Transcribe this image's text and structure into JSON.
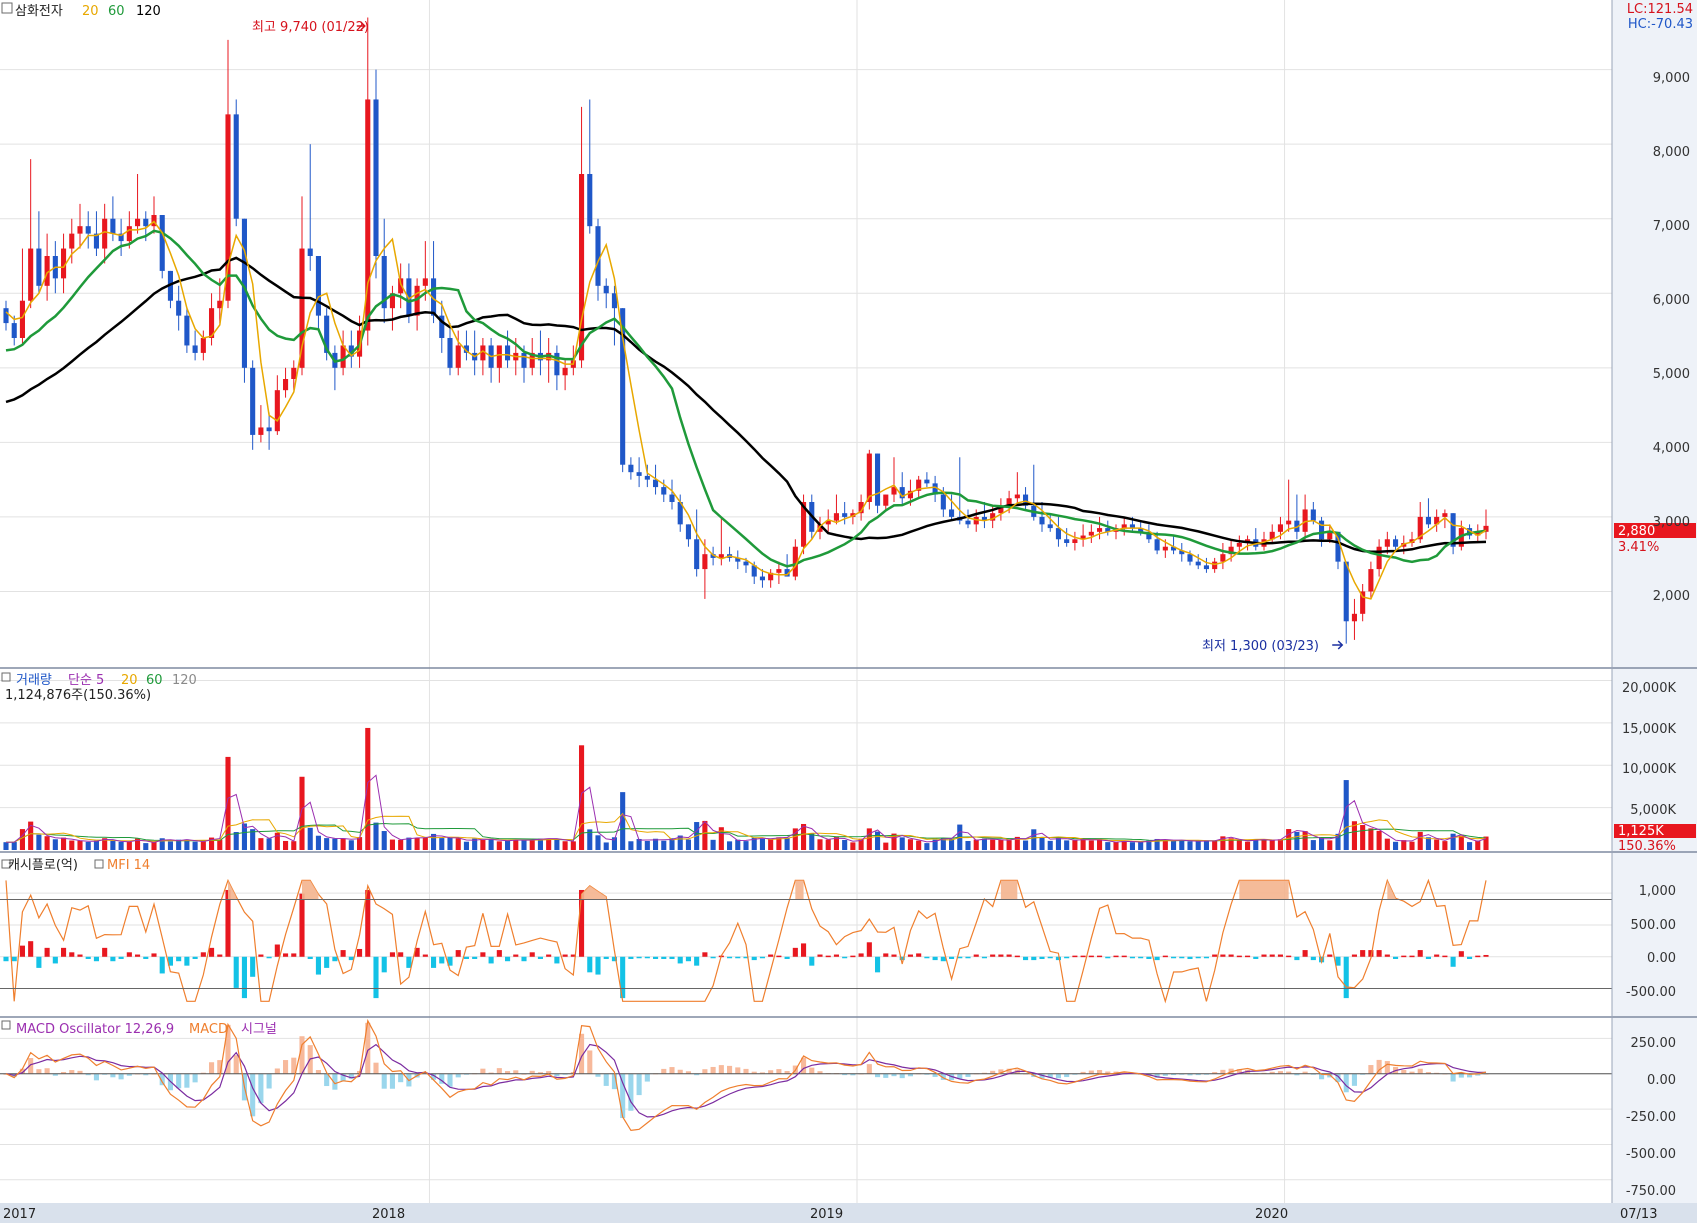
{
  "colors": {
    "up": "#e8171f",
    "down": "#1f57c8",
    "ma20": "#e8a800",
    "ma60": "#1f9a3a",
    "ma120": "#000000",
    "mfi": "#ef7f2e",
    "mfi_fill": "#f4b48e",
    "cash_neg": "#13c2e6",
    "macd_line": "#ef7f2e",
    "signal_line": "#7b2ca0",
    "osc_pos": "#f7b99b",
    "osc_neg": "#9ad6ec",
    "grid": "#e2e2e2",
    "axis_bg": "#d9e1ec",
    "header_blue": "#1a2fa0",
    "header_red": "#d6121c"
  },
  "price_panel": {
    "stock_name": "삼화전자",
    "ma_labels": [
      "20",
      "60",
      "120"
    ],
    "lc": "LC:121.54",
    "hc": "HC:-70.43",
    "high_annotation": "최고 9,740 (01/22)",
    "low_annotation": "최저 1,300 (03/23)",
    "current_price": "2,880",
    "change_pct": "3.41%",
    "y_ticks": [
      "9,000",
      "8,000",
      "7,000",
      "6,000",
      "5,000",
      "4,000",
      "3,000",
      "2,000"
    ]
  },
  "volume_panel": {
    "title": "거래량",
    "simple_label": "단순 5",
    "ma_labels": [
      "20",
      "60",
      "120"
    ],
    "value_text": "1,124,876주(150.36%)",
    "current": "1,125K",
    "current_pct": "150.36%",
    "y_ticks": [
      "20,000K",
      "15,000K",
      "10,000K",
      "5,000K"
    ]
  },
  "cash_panel": {
    "title": "캐시플로(억)",
    "mfi_label": "MFI 14",
    "y_ticks": [
      "1,000",
      "500.00",
      "0.00",
      "-500.00"
    ]
  },
  "macd_panel": {
    "osc_label": "MACD Oscillator 12,26,9",
    "macd_label": "MACD",
    "signal_label": "시그널",
    "y_ticks": [
      "250.00",
      "0.00",
      "-250.00",
      "-500.00",
      "-750.00"
    ]
  },
  "x_axis": {
    "labels": [
      "2017",
      "2018",
      "2019",
      "2020"
    ],
    "last_label": "07/13"
  },
  "chart_data": {
    "type": "candlestick",
    "title": "삼화전자",
    "x_range": [
      "2017-01",
      "2020-07-13"
    ],
    "price_ylim": [
      1000,
      9800
    ],
    "candles_ohlc_weekly": [
      [
        5800,
        5900,
        5500,
        5600
      ],
      [
        5600,
        5700,
        5300,
        5400
      ],
      [
        5400,
        6600,
        5300,
        5900
      ],
      [
        5900,
        7800,
        5800,
        6600
      ],
      [
        6600,
        7100,
        6000,
        6100
      ],
      [
        6100,
        6800,
        5900,
        6500
      ],
      [
        6500,
        6700,
        6000,
        6200
      ],
      [
        6200,
        6800,
        6000,
        6600
      ],
      [
        6600,
        7000,
        6400,
        6800
      ],
      [
        6800,
        7200,
        6600,
        6900
      ],
      [
        6900,
        7100,
        6600,
        6800
      ],
      [
        6800,
        7100,
        6500,
        6600
      ],
      [
        6600,
        7200,
        6400,
        7000
      ],
      [
        7000,
        7300,
        6700,
        6800
      ],
      [
        6800,
        7000,
        6500,
        6700
      ],
      [
        6700,
        7100,
        6600,
        6900
      ],
      [
        6900,
        7600,
        6800,
        7000
      ],
      [
        7000,
        7100,
        6700,
        6900
      ],
      [
        6900,
        7300,
        6800,
        7050
      ],
      [
        7050,
        7050,
        6200,
        6300
      ],
      [
        6300,
        6300,
        5800,
        5900
      ],
      [
        5900,
        6100,
        5500,
        5700
      ],
      [
        5700,
        5800,
        5200,
        5300
      ],
      [
        5300,
        5500,
        5100,
        5200
      ],
      [
        5200,
        5500,
        5100,
        5400
      ],
      [
        5400,
        6000,
        5300,
        5800
      ],
      [
        5800,
        6200,
        5600,
        5900
      ],
      [
        5900,
        9400,
        5800,
        8400
      ],
      [
        8400,
        8600,
        6900,
        7000
      ],
      [
        7000,
        7000,
        4800,
        5000
      ],
      [
        5000,
        5100,
        3900,
        4100
      ],
      [
        4100,
        4500,
        4000,
        4200
      ],
      [
        4200,
        4400,
        3900,
        4150
      ],
      [
        4150,
        4900,
        4100,
        4700
      ],
      [
        4700,
        5000,
        4600,
        4850
      ],
      [
        4850,
        5100,
        4700,
        5000
      ],
      [
        5000,
        7300,
        4900,
        6600
      ],
      [
        6600,
        8000,
        6300,
        6500
      ],
      [
        6500,
        6500,
        5500,
        5700
      ],
      [
        5700,
        5800,
        5100,
        5200
      ],
      [
        5200,
        5300,
        4700,
        5000
      ],
      [
        5000,
        5500,
        4900,
        5300
      ],
      [
        5300,
        5500,
        5000,
        5150
      ],
      [
        5150,
        5700,
        5000,
        5500
      ],
      [
        5500,
        9700,
        5300,
        8600
      ],
      [
        8600,
        9000,
        6200,
        6500
      ],
      [
        6500,
        7000,
        5600,
        5800
      ],
      [
        5800,
        6100,
        5500,
        6000
      ],
      [
        6000,
        6400,
        5800,
        6200
      ],
      [
        6200,
        6400,
        5600,
        5700
      ],
      [
        5700,
        6200,
        5500,
        6100
      ],
      [
        6100,
        6700,
        5900,
        6200
      ],
      [
        6200,
        6700,
        5600,
        5700
      ],
      [
        5700,
        5900,
        5200,
        5400
      ],
      [
        5400,
        5600,
        4900,
        5000
      ],
      [
        5000,
        5500,
        4900,
        5300
      ],
      [
        5300,
        5500,
        5100,
        5200
      ],
      [
        5200,
        5500,
        4900,
        5100
      ],
      [
        5100,
        5400,
        4900,
        5300
      ],
      [
        5300,
        5400,
        4800,
        5000
      ],
      [
        5000,
        5200,
        4800,
        5300
      ],
      [
        5300,
        5500,
        5000,
        5100
      ],
      [
        5100,
        5400,
        4900,
        5200
      ],
      [
        5200,
        5300,
        4800,
        5000
      ],
      [
        5000,
        5400,
        4900,
        5200
      ],
      [
        5200,
        5500,
        4900,
        5100
      ],
      [
        5100,
        5400,
        4800,
        5200
      ],
      [
        5200,
        5300,
        4700,
        4900
      ],
      [
        4900,
        5100,
        4700,
        5000
      ],
      [
        5000,
        5300,
        4900,
        5100
      ],
      [
        5100,
        8500,
        5000,
        7600
      ],
      [
        7600,
        8600,
        6800,
        6900
      ],
      [
        6900,
        7000,
        5900,
        6100
      ],
      [
        6100,
        6200,
        5800,
        6000
      ],
      [
        6000,
        6100,
        5300,
        5800
      ],
      [
        5800,
        5800,
        3600,
        3700
      ],
      [
        3700,
        3800,
        3500,
        3600
      ],
      [
        3600,
        3800,
        3400,
        3550
      ],
      [
        3550,
        3700,
        3400,
        3500
      ],
      [
        3500,
        3700,
        3300,
        3400
      ],
      [
        3400,
        3500,
        3200,
        3300
      ],
      [
        3300,
        3500,
        3100,
        3200
      ],
      [
        3200,
        3300,
        2800,
        2900
      ],
      [
        2900,
        2900,
        2600,
        2700
      ],
      [
        2700,
        3100,
        2200,
        2300
      ],
      [
        2300,
        2700,
        1900,
        2500
      ],
      [
        2500,
        2600,
        2350,
        2450
      ],
      [
        2450,
        3000,
        2350,
        2500
      ],
      [
        2500,
        2600,
        2400,
        2450
      ],
      [
        2450,
        2550,
        2300,
        2400
      ],
      [
        2400,
        2450,
        2250,
        2350
      ],
      [
        2350,
        2400,
        2100,
        2200
      ],
      [
        2200,
        2300,
        2050,
        2150
      ],
      [
        2150,
        2300,
        2050,
        2250
      ],
      [
        2250,
        2400,
        2100,
        2300
      ],
      [
        2300,
        2500,
        2200,
        2200
      ],
      [
        2200,
        2700,
        2150,
        2600
      ],
      [
        2600,
        3300,
        2500,
        3200
      ],
      [
        3200,
        3300,
        2700,
        2800
      ],
      [
        2800,
        3000,
        2700,
        2900
      ],
      [
        2900,
        3100,
        2800,
        2950
      ],
      [
        2950,
        3300,
        2900,
        3050
      ],
      [
        3050,
        3200,
        2900,
        3000
      ],
      [
        3000,
        3100,
        2900,
        3050
      ],
      [
        3050,
        3300,
        2950,
        3200
      ],
      [
        3200,
        3900,
        3100,
        3850
      ],
      [
        3850,
        3850,
        3050,
        3150
      ],
      [
        3150,
        3300,
        3100,
        3300
      ],
      [
        3300,
        3800,
        3200,
        3400
      ],
      [
        3400,
        3600,
        3150,
        3250
      ],
      [
        3250,
        3500,
        3150,
        3350
      ],
      [
        3350,
        3550,
        3250,
        3500
      ],
      [
        3500,
        3600,
        3400,
        3450
      ],
      [
        3450,
        3550,
        3200,
        3300
      ],
      [
        3300,
        3400,
        3000,
        3100
      ],
      [
        3100,
        3300,
        2950,
        3000
      ],
      [
        3000,
        3800,
        2900,
        2950
      ],
      [
        2950,
        3100,
        2850,
        2900
      ],
      [
        2900,
        3100,
        2800,
        3000
      ],
      [
        3000,
        3200,
        2850,
        2950
      ],
      [
        2950,
        3150,
        2850,
        3050
      ],
      [
        3050,
        3250,
        2950,
        3150
      ],
      [
        3150,
        3350,
        3050,
        3250
      ],
      [
        3250,
        3600,
        3150,
        3300
      ],
      [
        3300,
        3400,
        3100,
        3150
      ],
      [
        3150,
        3700,
        2950,
        3000
      ],
      [
        3000,
        3200,
        2800,
        2900
      ],
      [
        2900,
        3050,
        2800,
        2850
      ],
      [
        2850,
        3000,
        2600,
        2700
      ],
      [
        2700,
        2850,
        2600,
        2650
      ],
      [
        2650,
        2800,
        2550,
        2700
      ],
      [
        2700,
        2900,
        2600,
        2750
      ],
      [
        2750,
        2900,
        2650,
        2800
      ],
      [
        2800,
        3000,
        2700,
        2850
      ],
      [
        2850,
        2950,
        2750,
        2800
      ],
      [
        2800,
        2900,
        2700,
        2850
      ],
      [
        2850,
        3000,
        2750,
        2900
      ],
      [
        2900,
        3000,
        2800,
        2850
      ],
      [
        2850,
        2950,
        2750,
        2800
      ],
      [
        2800,
        2900,
        2650,
        2700
      ],
      [
        2700,
        2800,
        2500,
        2550
      ],
      [
        2550,
        2700,
        2450,
        2600
      ],
      [
        2600,
        2750,
        2500,
        2550
      ],
      [
        2550,
        2650,
        2400,
        2500
      ],
      [
        2500,
        2550,
        2350,
        2400
      ],
      [
        2400,
        2500,
        2300,
        2350
      ],
      [
        2350,
        2450,
        2250,
        2300
      ],
      [
        2300,
        2450,
        2250,
        2400
      ],
      [
        2400,
        2650,
        2300,
        2500
      ],
      [
        2500,
        2700,
        2400,
        2600
      ],
      [
        2600,
        2750,
        2500,
        2650
      ],
      [
        2650,
        2750,
        2550,
        2700
      ],
      [
        2700,
        2850,
        2550,
        2600
      ],
      [
        2600,
        2800,
        2550,
        2700
      ],
      [
        2700,
        2900,
        2650,
        2800
      ],
      [
        2800,
        3000,
        2700,
        2900
      ],
      [
        2900,
        3500,
        2800,
        2950
      ],
      [
        2950,
        3300,
        2700,
        2800
      ],
      [
        2800,
        3300,
        2700,
        3100
      ],
      [
        3100,
        3200,
        2900,
        2950
      ],
      [
        2950,
        3000,
        2600,
        2700
      ],
      [
        2700,
        2900,
        2650,
        2800
      ],
      [
        2800,
        2800,
        2300,
        2400
      ],
      [
        2400,
        2400,
        1300,
        1600
      ],
      [
        1600,
        1900,
        1350,
        1700
      ],
      [
        1700,
        2100,
        1600,
        2000
      ],
      [
        2000,
        2400,
        1900,
        2300
      ],
      [
        2300,
        2700,
        2200,
        2600
      ],
      [
        2600,
        2800,
        2500,
        2700
      ],
      [
        2700,
        2750,
        2550,
        2600
      ],
      [
        2600,
        2750,
        2500,
        2650
      ],
      [
        2650,
        2800,
        2600,
        2700
      ],
      [
        2700,
        3200,
        2650,
        3000
      ],
      [
        3000,
        3250,
        2850,
        2900
      ],
      [
        2900,
        3100,
        2800,
        3000
      ],
      [
        3000,
        3100,
        2850,
        3050
      ],
      [
        3050,
        3050,
        2500,
        2600
      ],
      [
        2600,
        2950,
        2550,
        2850
      ],
      [
        2850,
        2900,
        2700,
        2750
      ],
      [
        2750,
        2900,
        2650,
        2800
      ],
      [
        2800,
        3100,
        2700,
        2880
      ]
    ],
    "annotations": [
      {
        "text": "최고 9,740 (01/22)",
        "value": 9740
      },
      {
        "text": "최저 1,300 (03/23)",
        "value": 1300
      }
    ],
    "volume_ylim_k": [
      0,
      21000
    ],
    "cash_ylim": [
      -900,
      1600
    ],
    "macd_ylim": [
      -900,
      380
    ]
  }
}
